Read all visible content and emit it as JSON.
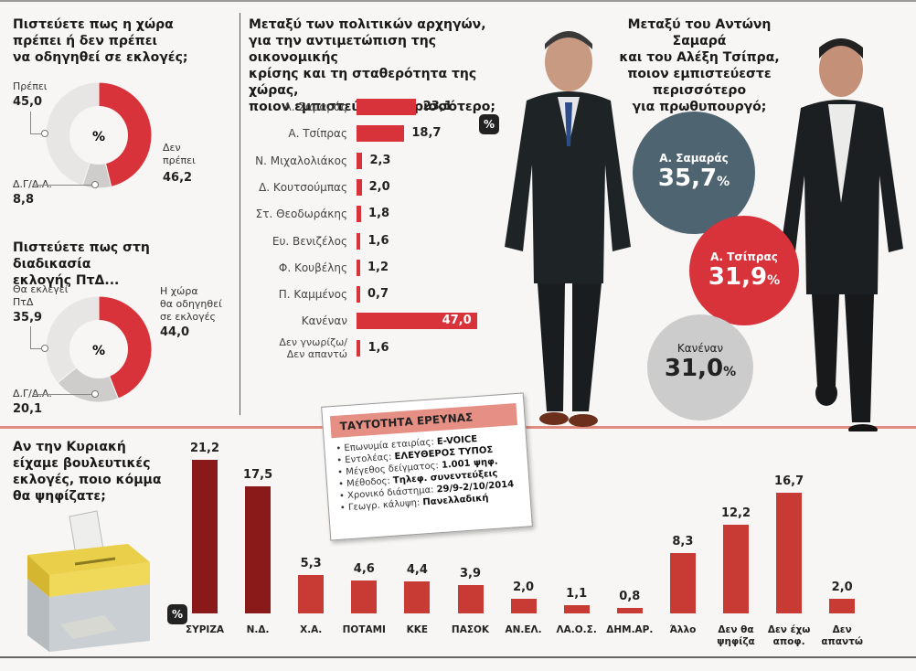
{
  "q1": {
    "question": [
      "Πιστεύετε πως η χώρα",
      "πρέπει ή δεν πρέπει",
      "να οδηγηθεί σε εκλογές;"
    ],
    "center": "%",
    "slices": [
      {
        "label": "Πρέπει",
        "value": 45.0,
        "value_text": "45,0",
        "color": "#e8e6e4"
      },
      {
        "label": "Δεν πρέπει",
        "value": 46.2,
        "value_text": "46,2",
        "color": "#d8323a"
      },
      {
        "label": "Δ.Γ/Δ.Α.",
        "value": 8.8,
        "value_text": "8,8",
        "color": "#cfcdcb"
      }
    ],
    "label_lines_no": [
      "Δεν",
      "πρέπει"
    ]
  },
  "q2": {
    "question": [
      "Πιστεύετε πως στη διαδικασία",
      "εκλογής ΠτΔ..."
    ],
    "center": "%",
    "slices": [
      {
        "label": "Θα εκλεγεί ΠτΔ",
        "value": 35.9,
        "value_text": "35,9",
        "color": "#e8e6e4"
      },
      {
        "label": "Η χώρα θα οδηγηθεί σε εκλογές",
        "value": 44.0,
        "value_text": "44,0",
        "color": "#d8323a"
      },
      {
        "label": "Δ.Γ/Δ.Α.",
        "value": 20.1,
        "value_text": "20,1",
        "color": "#cfcdcb"
      }
    ],
    "label_lines_yes": [
      "Θα εκλεγεί",
      "ΠτΔ"
    ],
    "label_lines_elect": [
      "Η χώρα",
      "θα οδηγηθεί",
      "σε εκλογές"
    ]
  },
  "q3": {
    "question": [
      "Μεταξύ των πολιτικών αρχηγών,",
      "για την αντιμετώπιση της οικονομικής",
      "κρίσης και τη σταθερότητα της χώρας,",
      "ποιον εμπιστεύεστε περισσότερο;"
    ],
    "badge": "%",
    "rows": [
      {
        "name": "Α. Σαμαράς",
        "value": 23.1,
        "value_text": "23,1"
      },
      {
        "name": "Α. Τσίπρας",
        "value": 18.7,
        "value_text": "18,7"
      },
      {
        "name": "Ν. Μιχαλολιάκος",
        "value": 2.3,
        "value_text": "2,3"
      },
      {
        "name": "Δ. Κουτσούμπας",
        "value": 2.0,
        "value_text": "2,0"
      },
      {
        "name": "Στ. Θεοδωράκης",
        "value": 1.8,
        "value_text": "1,8"
      },
      {
        "name": "Ευ. Βενιζέλος",
        "value": 1.6,
        "value_text": "1,6"
      },
      {
        "name": "Φ. Κουβέλης",
        "value": 1.2,
        "value_text": "1,2"
      },
      {
        "name": "Π. Καμμένος",
        "value": 0.7,
        "value_text": "0,7"
      },
      {
        "name": "Κανέναν",
        "value": 47.0,
        "value_text": "47,0"
      },
      {
        "name": "Δεν γνωρίζω/ Δεν απαντώ",
        "value": 1.6,
        "value_text": "1,6"
      }
    ]
  },
  "q4": {
    "question": [
      "Μεταξύ του Αντώνη Σαμαρά",
      "και του Αλέξη Τσίπρα,",
      "ποιον εμπιστεύεστε",
      "περισσότερο",
      "για πρωθυπουργό;"
    ],
    "options": [
      {
        "name": "Α. Σαμαράς",
        "value": 35.7,
        "value_text": "35,7",
        "unit": "%",
        "color": "#4e6470"
      },
      {
        "name": "Α. Τσίπρας",
        "value": 31.9,
        "value_text": "31,9",
        "unit": "%",
        "color": "#d8323a"
      },
      {
        "name": "Κανέναν",
        "value": 31.0,
        "value_text": "31,0",
        "unit": "%",
        "color": "#cdcccc"
      }
    ]
  },
  "q5": {
    "question": [
      "Αν την Κυριακή",
      "είχαμε βουλευτικές",
      "εκλογές, ποιο κόμμα",
      "θα ψηφίζατε;"
    ],
    "badge": "%"
  },
  "survey_card": {
    "title": "ΤΑΥΤΟΤΗΤΑ ΕΡΕΥΝΑΣ",
    "rows": [
      {
        "label": "Επωνυμία εταιρίας:",
        "value": "E-VOICE"
      },
      {
        "label": "Εντολέας:",
        "value": "ΕΛΕΥΘΕΡΟΣ ΤΥΠΟΣ"
      },
      {
        "label": "Μέγεθος δείγματος:",
        "value": "1.001 ψηφ."
      },
      {
        "label": "Μέθοδος:",
        "value": "Τηλεφ. συνεντεύξεις"
      },
      {
        "label": "Χρονικό διάστημα:",
        "value": "29/9-2/10/2014"
      },
      {
        "label": "Γεωγρ. κάλυψη:",
        "value": "Πανελλαδική"
      }
    ]
  },
  "chart_data": [
    {
      "type": "pie",
      "categories": [
        "Πρέπει",
        "Δεν πρέπει",
        "Δ.Γ/Δ.Α."
      ],
      "values": [
        45.0,
        46.2,
        8.8
      ],
      "title": "Πιστεύετε πως η χώρα πρέπει ή δεν πρέπει να οδηγηθεί σε εκλογές;"
    },
    {
      "type": "pie",
      "categories": [
        "Θα εκλεγεί ΠτΔ",
        "Η χώρα θα οδηγηθεί σε εκλογές",
        "Δ.Γ/Δ.Α."
      ],
      "values": [
        35.9,
        44.0,
        20.1
      ],
      "title": "Πιστεύετε πως στη διαδικασία εκλογής ΠτΔ..."
    },
    {
      "type": "bar",
      "orientation": "horizontal",
      "categories": [
        "Α. Σαμαράς",
        "Α. Τσίπρας",
        "Ν. Μιχαλολιάκος",
        "Δ. Κουτσούμπας",
        "Στ. Θεοδωράκης",
        "Ευ. Βενιζέλος",
        "Φ. Κουβέλης",
        "Π. Καμμένος",
        "Κανέναν",
        "Δεν γνωρίζω/ Δεν απαντώ"
      ],
      "values": [
        23.1,
        18.7,
        2.3,
        2.0,
        1.8,
        1.6,
        1.2,
        0.7,
        47.0,
        1.6
      ],
      "title": "Μεταξύ των πολιτικών αρχηγών, για την αντιμετώπιση της οικονομικής κρίσης και τη σταθερότητα της χώρας, ποιον εμπιστεύεστε περισσότερο;"
    },
    {
      "type": "bubble",
      "categories": [
        "Α. Σαμαράς",
        "Α. Τσίπρας",
        "Κανέναν"
      ],
      "values": [
        35.7,
        31.9,
        31.0
      ],
      "title": "Μεταξύ του Αντώνη Σαμαρά και του Αλέξη Τσίπρα, ποιον εμπιστεύεστε περισσότερο για πρωθυπουργό;"
    },
    {
      "type": "bar",
      "orientation": "vertical",
      "categories": [
        "ΣΥΡΙΖΑ",
        "Ν.Δ.",
        "Χ.Α.",
        "ΠΟΤΑΜΙ",
        "ΚΚΕ",
        "ΠΑΣΟΚ",
        "ΑΝ.ΕΛ.",
        "ΛΑ.Ο.Σ.",
        "ΔΗΜ.ΑΡ.",
        "Άλλο",
        "Δεν θα ψηφίζα",
        "Δεν έχω αποφ.",
        "Δεν απαντώ"
      ],
      "values": [
        21.2,
        17.5,
        5.3,
        4.6,
        4.4,
        3.9,
        2.0,
        1.1,
        0.8,
        8.3,
        12.2,
        16.7,
        2.0
      ],
      "value_texts": [
        "21,2",
        "17,5",
        "5,3",
        "4,6",
        "4,4",
        "3,9",
        "2,0",
        "1,1",
        "0,8",
        "8,3",
        "12,2",
        "16,7",
        "2,0"
      ],
      "label_lines": [
        [
          "ΣΥΡΙΖΑ"
        ],
        [
          "Ν.Δ."
        ],
        [
          "Χ.Α."
        ],
        [
          "ΠΟΤΑΜΙ"
        ],
        [
          "ΚΚΕ"
        ],
        [
          "ΠΑΣΟΚ"
        ],
        [
          "ΑΝ.ΕΛ."
        ],
        [
          "ΛΑ.Ο.Σ."
        ],
        [
          "ΔΗΜ.ΑΡ."
        ],
        [
          "Άλλο"
        ],
        [
          "Δεν θα",
          "ψηφίζα"
        ],
        [
          "Δεν έχω",
          "αποφ."
        ],
        [
          "Δεν",
          "απαντώ"
        ]
      ],
      "dark_bars": [
        "ΣΥΡΙΖΑ",
        "Ν.Δ."
      ],
      "title": "Αν την Κυριακή είχαμε βουλευτικές εκλογές, ποιο κόμμα θα ψηφίζατε;"
    }
  ]
}
